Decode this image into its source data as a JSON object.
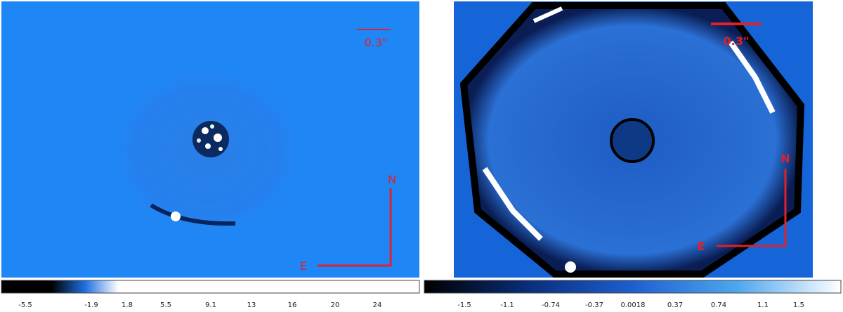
{
  "left_panel": {
    "scale_label": "0.3\"",
    "north_label": "N",
    "east_label": "E",
    "colorbar_ticks": [
      "-5.5",
      "-1.9",
      "1.8",
      "5.5",
      "9.1",
      "13",
      "16",
      "20",
      "24"
    ]
  },
  "right_panel": {
    "scale_label": "0.3\"",
    "north_label": "N",
    "east_label": "E",
    "colorbar_ticks": [
      "-1.5",
      "-1.1",
      "-0.74",
      "-0.37",
      "0.0018",
      "0.37",
      "0.74",
      "1.1",
      "1.5"
    ]
  }
}
